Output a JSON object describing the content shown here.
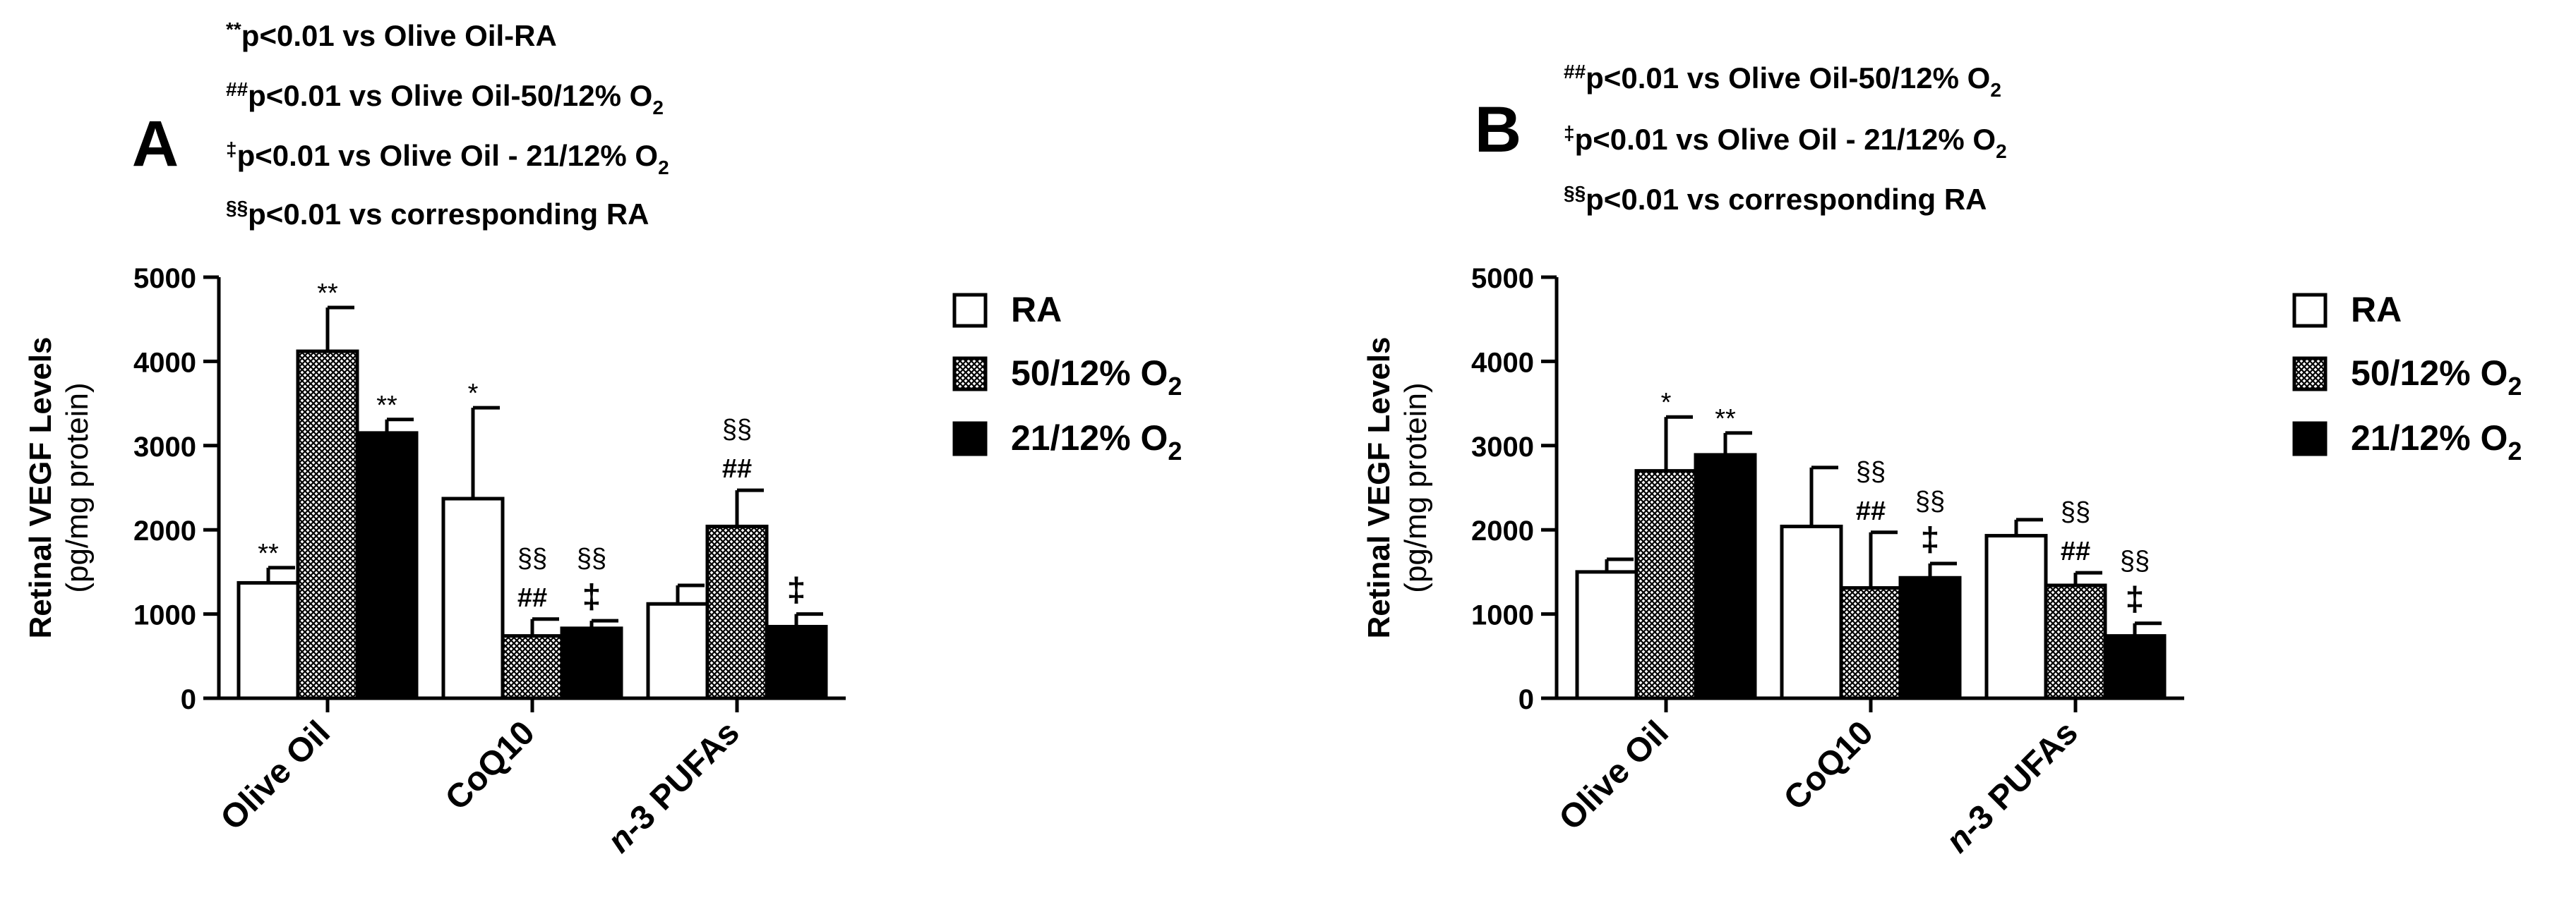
{
  "chart_data": [
    {
      "panel": "A",
      "type": "bar",
      "categories": [
        "Olive Oil",
        "CoQ10",
        "n-3 PUFAs"
      ],
      "category_prefix_italic": [
        "",
        "",
        "n"
      ],
      "series": [
        {
          "name": "RA",
          "sub": "",
          "fill": "white",
          "values": [
            1370,
            2370,
            1120
          ],
          "errors": [
            180,
            1080,
            220
          ]
        },
        {
          "name": "50/12% O",
          "sub": "2",
          "fill": "hatch",
          "values": [
            4120,
            740,
            2040
          ],
          "errors": [
            520,
            200,
            430
          ]
        },
        {
          "name": "21/12% O",
          "sub": "2",
          "fill": "black",
          "values": [
            3150,
            830,
            850
          ],
          "errors": [
            160,
            90,
            150
          ]
        }
      ],
      "annotations": [
        [
          [
            "**"
          ],
          [
            "*"
          ],
          []
        ],
        [
          [
            "**"
          ],
          [
            "§§",
            "##"
          ],
          [
            "§§",
            "##"
          ]
        ],
        [
          [
            "**"
          ],
          [
            "§§",
            "‡"
          ],
          [
            "‡"
          ]
        ]
      ],
      "ylabel_line1": "Retinal VEGF Levels",
      "ylabel_line2": "(pg/mg protein)",
      "ylim": [
        0,
        5000
      ],
      "yticks": [
        "0",
        "1000",
        "2000",
        "3000",
        "4000",
        "5000"
      ],
      "legend": "right",
      "notes": [
        {
          "sup": "**",
          "text": "p<0.01 vs Olive  Oil-RA",
          "sub": ""
        },
        {
          "sup": "##",
          "text": "p<0.01 vs Olive Oil-50/12% O",
          "sub": "2"
        },
        {
          "sup": "‡",
          "text": "p<0.01 vs Olive Oil - 21/12% O",
          "sub": "2"
        },
        {
          "sup": "§§",
          "text": "p<0.01 vs corresponding RA",
          "sub": ""
        }
      ]
    },
    {
      "panel": "B",
      "type": "bar",
      "categories": [
        "Olive Oil",
        "CoQ10",
        "n-3 PUFAs"
      ],
      "category_prefix_italic": [
        "",
        "",
        "n"
      ],
      "series": [
        {
          "name": "RA",
          "sub": "",
          "fill": "white",
          "values": [
            1500,
            2040,
            1930
          ],
          "errors": [
            150,
            700,
            190
          ]
        },
        {
          "name": "50/12% O",
          "sub": "2",
          "fill": "hatch",
          "values": [
            2700,
            1310,
            1340
          ],
          "errors": [
            640,
            660,
            150
          ]
        },
        {
          "name": "21/12% O",
          "sub": "2",
          "fill": "black",
          "values": [
            2890,
            1430,
            740
          ],
          "errors": [
            260,
            170,
            150
          ]
        }
      ],
      "annotations": [
        [
          [],
          [],
          []
        ],
        [
          [
            "*"
          ],
          [
            "§§",
            "##"
          ],
          [
            "§§",
            "##"
          ]
        ],
        [
          [
            "**"
          ],
          [
            "§§",
            "‡"
          ],
          [
            "§§",
            "‡"
          ]
        ]
      ],
      "ylabel_line1": "Retinal VEGF Levels",
      "ylabel_line2": "(pg/mg protein)",
      "ylim": [
        0,
        5000
      ],
      "yticks": [
        "0",
        "1000",
        "2000",
        "3000",
        "4000",
        "5000"
      ],
      "legend": "right",
      "notes": [
        {
          "sup": "##",
          "text": "p<0.01 vs Olive Oil-50/12% O",
          "sub": "2"
        },
        {
          "sup": "‡",
          "text": "p<0.01 vs Olive Oil - 21/12% O",
          "sub": "2"
        },
        {
          "sup": "§§",
          "text": "p<0.01 vs corresponding RA",
          "sub": ""
        }
      ]
    }
  ]
}
